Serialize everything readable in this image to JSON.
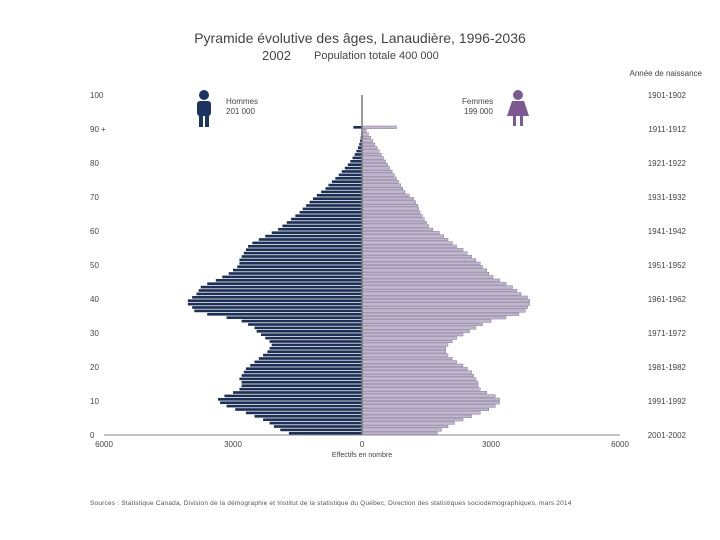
{
  "header": {
    "title": "Pyramide évolutive des âges, Lanaudière, 1996-2036",
    "year": "2002",
    "total": "Population totale 400 000",
    "birth_year_heading": "Année de naissance"
  },
  "legend": {
    "men_label": "Hommes",
    "men_value": "201 000",
    "women_label": "Femmes",
    "women_value": "199 000",
    "men_color": "#1c2f55",
    "women_color": "#c2b5d0",
    "men_icon": "man-icon",
    "women_icon": "woman-icon"
  },
  "source": "Sources : Statistique Canada, Division de la démographie et Institut de la statistique du Québec, Direction des statistiques sociodémographiques, mars 2014",
  "chart_data": {
    "type": "bar",
    "orientation": "horizontal-pyramid",
    "xlabel": "Effectifs en nombre",
    "xlim": [
      -6000,
      6000
    ],
    "x_ticks": [
      -6000,
      -3000,
      0,
      3000,
      6000
    ],
    "x_tick_labels": [
      "6000",
      "3000",
      "0",
      "3000",
      "6000"
    ],
    "ylim": [
      0,
      100
    ],
    "y_ticks": [
      0,
      10,
      20,
      30,
      40,
      50,
      60,
      70,
      80,
      90
    ],
    "y_tick_labels": [
      "0",
      "10",
      "20",
      "30",
      "40",
      "50",
      "60",
      "70",
      "80",
      "90 +"
    ],
    "y_top_label": "100",
    "birth_year_labels": [
      "2001-2002",
      "1991-1992",
      "1981-1982",
      "1971-1972",
      "1961-1962",
      "1951-1952",
      "1941-1942",
      "1931-1932",
      "1921-1922",
      "1911-1912",
      "1901-1902"
    ],
    "ages": [
      0,
      1,
      2,
      3,
      4,
      5,
      6,
      7,
      8,
      9,
      10,
      11,
      12,
      13,
      14,
      15,
      16,
      17,
      18,
      19,
      20,
      21,
      22,
      23,
      24,
      25,
      26,
      27,
      28,
      29,
      30,
      31,
      32,
      33,
      34,
      35,
      36,
      37,
      38,
      39,
      40,
      41,
      42,
      43,
      44,
      45,
      46,
      47,
      48,
      49,
      50,
      51,
      52,
      53,
      54,
      55,
      56,
      57,
      58,
      59,
      60,
      61,
      62,
      63,
      64,
      65,
      66,
      67,
      68,
      69,
      70,
      71,
      72,
      73,
      74,
      75,
      76,
      77,
      78,
      79,
      80,
      81,
      82,
      83,
      84,
      85,
      86,
      87,
      88,
      89,
      "90+"
    ],
    "series": [
      {
        "name": "Hommes",
        "values": [
          1700,
          1900,
          2050,
          2150,
          2300,
          2500,
          2700,
          2950,
          3150,
          3300,
          3350,
          3200,
          3000,
          2850,
          2800,
          2800,
          2850,
          2800,
          2750,
          2700,
          2600,
          2500,
          2400,
          2300,
          2200,
          2150,
          2100,
          2150,
          2250,
          2350,
          2450,
          2500,
          2650,
          2800,
          3150,
          3600,
          3900,
          3950,
          4050,
          4050,
          3950,
          3850,
          3800,
          3750,
          3600,
          3400,
          3250,
          3100,
          3000,
          2900,
          2850,
          2850,
          2800,
          2750,
          2700,
          2650,
          2550,
          2400,
          2250,
          2100,
          1950,
          1850,
          1750,
          1650,
          1550,
          1450,
          1380,
          1300,
          1220,
          1140,
          1050,
          950,
          850,
          780,
          700,
          620,
          540,
          470,
          400,
          330,
          270,
          220,
          170,
          130,
          95,
          65,
          45,
          30,
          20,
          10,
          200
        ]
      },
      {
        "name": "Femmes",
        "values": [
          1750,
          1850,
          2000,
          2150,
          2350,
          2550,
          2750,
          2950,
          3100,
          3200,
          3200,
          3100,
          2900,
          2750,
          2700,
          2700,
          2650,
          2600,
          2550,
          2450,
          2350,
          2200,
          2100,
          2000,
          1950,
          1950,
          2000,
          2100,
          2200,
          2350,
          2500,
          2650,
          2800,
          3000,
          3350,
          3650,
          3800,
          3850,
          3900,
          3900,
          3850,
          3700,
          3600,
          3500,
          3350,
          3200,
          3050,
          2950,
          2900,
          2800,
          2750,
          2650,
          2550,
          2450,
          2350,
          2200,
          2100,
          2000,
          1900,
          1800,
          1650,
          1550,
          1500,
          1450,
          1400,
          1350,
          1320,
          1300,
          1250,
          1200,
          1100,
          1000,
          950,
          900,
          850,
          800,
          750,
          700,
          650,
          600,
          550,
          500,
          450,
          400,
          350,
          300,
          250,
          200,
          150,
          100,
          800
        ]
      }
    ]
  }
}
